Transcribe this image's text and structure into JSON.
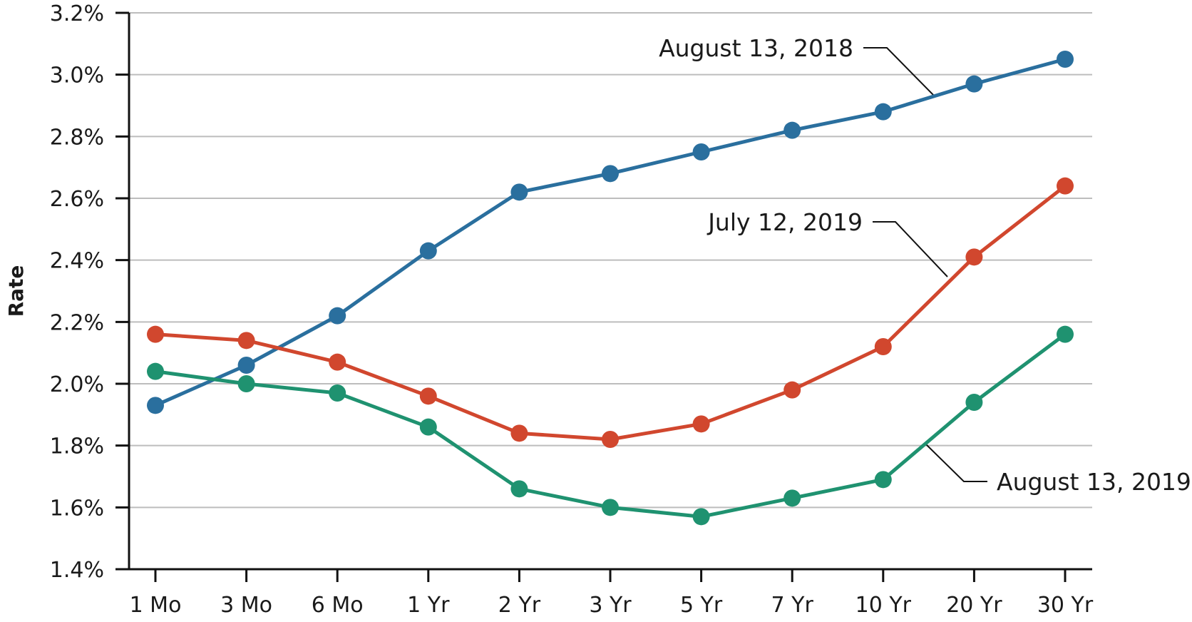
{
  "chart_data": {
    "type": "line",
    "ylabel": "Rate",
    "xlabel": "",
    "ylim": [
      1.4,
      3.2
    ],
    "y_ticks": [
      1.4,
      1.6,
      1.8,
      2.0,
      2.2,
      2.4,
      2.6,
      2.8,
      3.0,
      3.2
    ],
    "y_tick_labels": [
      "1.4%",
      "1.6%",
      "1.8%",
      "2.0%",
      "2.2%",
      "2.4%",
      "2.6%",
      "2.8%",
      "3.0%",
      "3.2%"
    ],
    "categories": [
      "1 Mo",
      "3 Mo",
      "6 Mo",
      "1 Yr",
      "2 Yr",
      "3 Yr",
      "5 Yr",
      "7 Yr",
      "10 Yr",
      "20 Yr",
      "30 Yr"
    ],
    "grid": "horizontal",
    "legend": "inline labels",
    "series": [
      {
        "name": "August 13, 2018",
        "color": "#2a6f9e",
        "values": [
          1.93,
          2.06,
          2.22,
          2.43,
          2.62,
          2.68,
          2.75,
          2.82,
          2.88,
          2.97,
          3.05
        ]
      },
      {
        "name": "July 12, 2019",
        "color": "#d1472e",
        "values": [
          2.16,
          2.14,
          2.07,
          1.96,
          1.84,
          1.82,
          1.87,
          1.98,
          2.12,
          2.41,
          2.64
        ]
      },
      {
        "name": "August 13, 2019",
        "color": "#1f9270",
        "values": [
          2.04,
          2.0,
          1.97,
          1.86,
          1.66,
          1.6,
          1.57,
          1.63,
          1.69,
          1.94,
          2.16
        ]
      }
    ]
  }
}
